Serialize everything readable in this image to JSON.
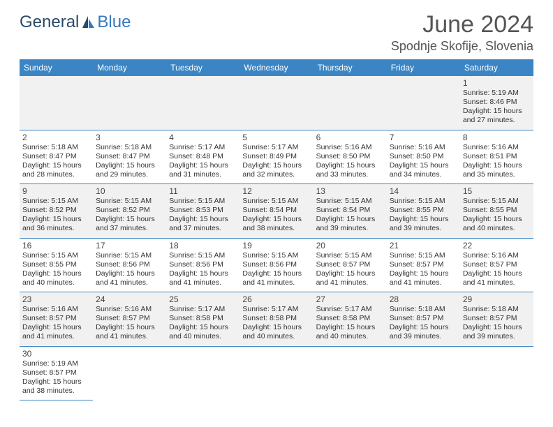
{
  "brand": {
    "part1": "General",
    "part2": "Blue"
  },
  "title": "June 2024",
  "location": "Spodnje Skofije, Slovenia",
  "colors": {
    "header_bg": "#3b85c4",
    "header_fg": "#ffffff",
    "row_alt_bg": "#f1f1f1",
    "border": "#3b85c4",
    "text": "#333333",
    "logo_dark": "#2a4a6a",
    "logo_blue": "#357abd"
  },
  "weekdays": [
    "Sunday",
    "Monday",
    "Tuesday",
    "Wednesday",
    "Thursday",
    "Friday",
    "Saturday"
  ],
  "weeks": [
    [
      null,
      null,
      null,
      null,
      null,
      null,
      {
        "d": "1",
        "sr": "5:19 AM",
        "ss": "8:46 PM",
        "dl": "15 hours and 27 minutes."
      }
    ],
    [
      {
        "d": "2",
        "sr": "5:18 AM",
        "ss": "8:47 PM",
        "dl": "15 hours and 28 minutes."
      },
      {
        "d": "3",
        "sr": "5:18 AM",
        "ss": "8:47 PM",
        "dl": "15 hours and 29 minutes."
      },
      {
        "d": "4",
        "sr": "5:17 AM",
        "ss": "8:48 PM",
        "dl": "15 hours and 31 minutes."
      },
      {
        "d": "5",
        "sr": "5:17 AM",
        "ss": "8:49 PM",
        "dl": "15 hours and 32 minutes."
      },
      {
        "d": "6",
        "sr": "5:16 AM",
        "ss": "8:50 PM",
        "dl": "15 hours and 33 minutes."
      },
      {
        "d": "7",
        "sr": "5:16 AM",
        "ss": "8:50 PM",
        "dl": "15 hours and 34 minutes."
      },
      {
        "d": "8",
        "sr": "5:16 AM",
        "ss": "8:51 PM",
        "dl": "15 hours and 35 minutes."
      }
    ],
    [
      {
        "d": "9",
        "sr": "5:15 AM",
        "ss": "8:52 PM",
        "dl": "15 hours and 36 minutes."
      },
      {
        "d": "10",
        "sr": "5:15 AM",
        "ss": "8:52 PM",
        "dl": "15 hours and 37 minutes."
      },
      {
        "d": "11",
        "sr": "5:15 AM",
        "ss": "8:53 PM",
        "dl": "15 hours and 37 minutes."
      },
      {
        "d": "12",
        "sr": "5:15 AM",
        "ss": "8:54 PM",
        "dl": "15 hours and 38 minutes."
      },
      {
        "d": "13",
        "sr": "5:15 AM",
        "ss": "8:54 PM",
        "dl": "15 hours and 39 minutes."
      },
      {
        "d": "14",
        "sr": "5:15 AM",
        "ss": "8:55 PM",
        "dl": "15 hours and 39 minutes."
      },
      {
        "d": "15",
        "sr": "5:15 AM",
        "ss": "8:55 PM",
        "dl": "15 hours and 40 minutes."
      }
    ],
    [
      {
        "d": "16",
        "sr": "5:15 AM",
        "ss": "8:55 PM",
        "dl": "15 hours and 40 minutes."
      },
      {
        "d": "17",
        "sr": "5:15 AM",
        "ss": "8:56 PM",
        "dl": "15 hours and 41 minutes."
      },
      {
        "d": "18",
        "sr": "5:15 AM",
        "ss": "8:56 PM",
        "dl": "15 hours and 41 minutes."
      },
      {
        "d": "19",
        "sr": "5:15 AM",
        "ss": "8:56 PM",
        "dl": "15 hours and 41 minutes."
      },
      {
        "d": "20",
        "sr": "5:15 AM",
        "ss": "8:57 PM",
        "dl": "15 hours and 41 minutes."
      },
      {
        "d": "21",
        "sr": "5:15 AM",
        "ss": "8:57 PM",
        "dl": "15 hours and 41 minutes."
      },
      {
        "d": "22",
        "sr": "5:16 AM",
        "ss": "8:57 PM",
        "dl": "15 hours and 41 minutes."
      }
    ],
    [
      {
        "d": "23",
        "sr": "5:16 AM",
        "ss": "8:57 PM",
        "dl": "15 hours and 41 minutes."
      },
      {
        "d": "24",
        "sr": "5:16 AM",
        "ss": "8:57 PM",
        "dl": "15 hours and 41 minutes."
      },
      {
        "d": "25",
        "sr": "5:17 AM",
        "ss": "8:58 PM",
        "dl": "15 hours and 40 minutes."
      },
      {
        "d": "26",
        "sr": "5:17 AM",
        "ss": "8:58 PM",
        "dl": "15 hours and 40 minutes."
      },
      {
        "d": "27",
        "sr": "5:17 AM",
        "ss": "8:58 PM",
        "dl": "15 hours and 40 minutes."
      },
      {
        "d": "28",
        "sr": "5:18 AM",
        "ss": "8:57 PM",
        "dl": "15 hours and 39 minutes."
      },
      {
        "d": "29",
        "sr": "5:18 AM",
        "ss": "8:57 PM",
        "dl": "15 hours and 39 minutes."
      }
    ],
    [
      {
        "d": "30",
        "sr": "5:19 AM",
        "ss": "8:57 PM",
        "dl": "15 hours and 38 minutes."
      },
      null,
      null,
      null,
      null,
      null,
      null
    ]
  ],
  "labels": {
    "sunrise": "Sunrise: ",
    "sunset": "Sunset: ",
    "daylight": "Daylight: "
  }
}
